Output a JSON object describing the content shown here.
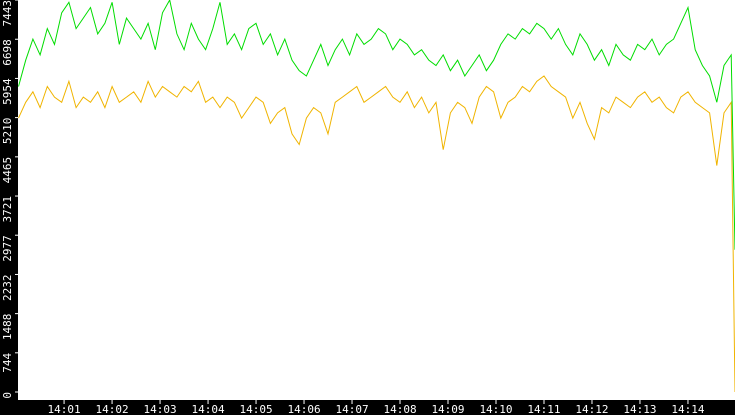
{
  "chart_data": {
    "type": "line",
    "x": [
      0.05,
      0.2,
      0.35,
      0.5,
      0.65,
      0.8,
      0.95,
      1.1,
      1.25,
      1.4,
      1.55,
      1.7,
      1.85,
      2.0,
      2.15,
      2.3,
      2.45,
      2.6,
      2.75,
      2.9,
      3.05,
      3.2,
      3.35,
      3.5,
      3.65,
      3.8,
      3.95,
      4.1,
      4.25,
      4.4,
      4.55,
      4.7,
      4.85,
      5.0,
      5.15,
      5.3,
      5.45,
      5.6,
      5.75,
      5.9,
      6.05,
      6.2,
      6.35,
      6.5,
      6.65,
      6.8,
      6.95,
      7.1,
      7.25,
      7.4,
      7.55,
      7.7,
      7.85,
      8.0,
      8.15,
      8.3,
      8.45,
      8.6,
      8.75,
      8.9,
      9.05,
      9.2,
      9.35,
      9.5,
      9.65,
      9.8,
      9.95,
      10.1,
      10.25,
      10.4,
      10.55,
      10.7,
      10.85,
      11.0,
      11.15,
      11.3,
      11.45,
      11.6,
      11.75,
      11.9,
      12.05,
      12.2,
      12.35,
      12.5,
      12.65,
      12.8,
      12.95,
      13.1,
      13.25,
      13.4,
      13.55,
      13.7,
      13.85,
      14.0,
      14.15,
      14.3,
      14.45,
      14.6,
      14.75,
      14.9,
      14.98
    ],
    "series": [
      {
        "color": "#00dd00",
        "values": [
          5800,
          6300,
          6700,
          6400,
          6900,
          6600,
          7200,
          7400,
          6900,
          7100,
          7300,
          6800,
          7000,
          7400,
          6600,
          7100,
          6900,
          6700,
          7000,
          6500,
          7200,
          7443,
          6800,
          6500,
          7000,
          6700,
          6500,
          6900,
          7400,
          6600,
          6800,
          6500,
          6900,
          7000,
          6600,
          6800,
          6400,
          6700,
          6300,
          6100,
          6000,
          6300,
          6600,
          6200,
          6500,
          6700,
          6400,
          6800,
          6600,
          6700,
          6900,
          6800,
          6500,
          6700,
          6600,
          6400,
          6500,
          6300,
          6200,
          6400,
          6100,
          6300,
          6000,
          6200,
          6400,
          6100,
          6300,
          6600,
          6800,
          6700,
          6900,
          6800,
          7000,
          6900,
          6700,
          6900,
          6600,
          6400,
          6800,
          6600,
          6300,
          6500,
          6200,
          6600,
          6400,
          6300,
          6600,
          6500,
          6700,
          6400,
          6600,
          6700,
          7000,
          7300,
          6500,
          6200,
          6000,
          5500,
          6200,
          6400,
          2700
        ]
      },
      {
        "color": "#f0b400",
        "values": [
          5200,
          5500,
          5700,
          5400,
          5800,
          5600,
          5500,
          5900,
          5400,
          5600,
          5500,
          5700,
          5400,
          5800,
          5500,
          5600,
          5700,
          5500,
          5900,
          5600,
          5800,
          5700,
          5600,
          5800,
          5700,
          5900,
          5500,
          5600,
          5400,
          5600,
          5500,
          5200,
          5400,
          5600,
          5500,
          5100,
          5300,
          5400,
          4900,
          4700,
          5200,
          5400,
          5300,
          4900,
          5500,
          5600,
          5700,
          5800,
          5500,
          5600,
          5700,
          5800,
          5600,
          5500,
          5700,
          5400,
          5600,
          5300,
          5500,
          4600,
          5300,
          5500,
          5400,
          5100,
          5600,
          5800,
          5700,
          5200,
          5500,
          5600,
          5800,
          5700,
          5900,
          6000,
          5800,
          5700,
          5600,
          5200,
          5500,
          5100,
          4800,
          5400,
          5300,
          5600,
          5500,
          5400,
          5600,
          5700,
          5500,
          5600,
          5400,
          5300,
          5600,
          5700,
          5500,
          5400,
          5300,
          4300,
          5300,
          5500,
          0
        ]
      }
    ],
    "xlim": [
      0.04,
      14.98
    ],
    "xticks": [
      {
        "value": 1,
        "label": "14:01"
      },
      {
        "value": 2,
        "label": "14:02"
      },
      {
        "value": 3,
        "label": "14:03"
      },
      {
        "value": 4,
        "label": "14:04"
      },
      {
        "value": 5,
        "label": "14:05"
      },
      {
        "value": 6,
        "label": "14:06"
      },
      {
        "value": 7,
        "label": "14:07"
      },
      {
        "value": 8,
        "label": "14:08"
      },
      {
        "value": 9,
        "label": "14:09"
      },
      {
        "value": 10,
        "label": "14:10"
      },
      {
        "value": 11,
        "label": "14:11"
      },
      {
        "value": 12,
        "label": "14:12"
      },
      {
        "value": 13,
        "label": "14:13"
      },
      {
        "value": 14,
        "label": "14:14"
      }
    ],
    "ylim": [
      0,
      7443
    ],
    "yticks": [
      0,
      744,
      1488,
      2232,
      2977,
      3721,
      4465,
      5210,
      5954,
      6698,
      7443
    ]
  }
}
